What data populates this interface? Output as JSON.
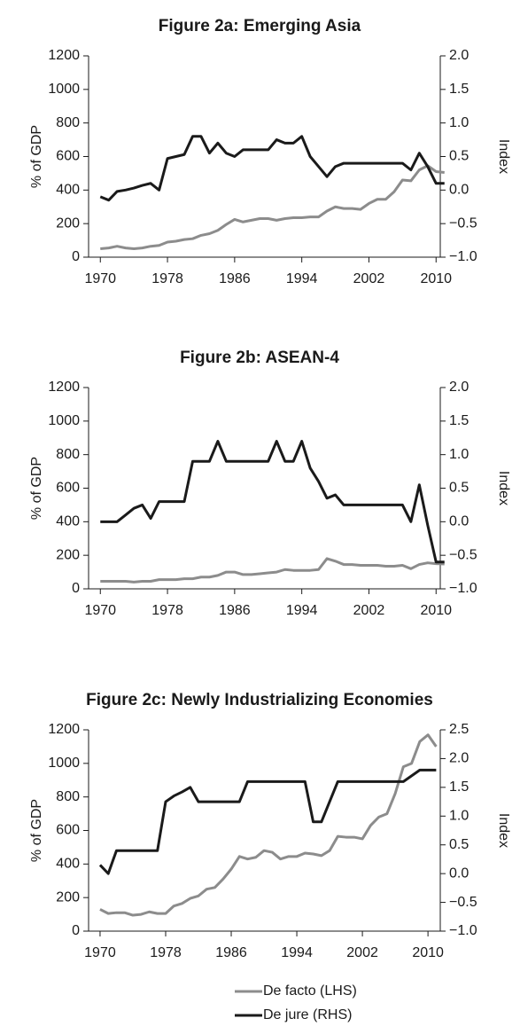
{
  "chart_data": [
    {
      "type": "line",
      "title": "Figure 2a: Emerging Asia",
      "ylabel": "% of GDP",
      "y2label": "Index",
      "x": [
        1970,
        1971,
        1972,
        1973,
        1974,
        1975,
        1976,
        1977,
        1978,
        1979,
        1980,
        1981,
        1982,
        1983,
        1984,
        1985,
        1986,
        1987,
        1988,
        1989,
        1990,
        1991,
        1992,
        1993,
        1994,
        1995,
        1996,
        1997,
        1998,
        1999,
        2000,
        2001,
        2002,
        2003,
        2004,
        2005,
        2006,
        2007,
        2008,
        2009,
        2010,
        2011
      ],
      "xlim": [
        1968.6,
        2010.5
      ],
      "xticks": [
        1970,
        1978,
        1986,
        1994,
        2002,
        2010
      ],
      "ylim": [
        0,
        1200
      ],
      "yticks": [
        0,
        200,
        400,
        600,
        800,
        1000,
        1200
      ],
      "y2lim": [
        -1.0,
        2.0
      ],
      "y2ticks": [
        {
          "value": -1.0,
          "label": "−1.0"
        },
        {
          "value": -0.5,
          "label": "−0.5"
        },
        {
          "value": 0,
          "label": "0.0"
        },
        0.5,
        {
          "value": 1,
          "label": "1.0"
        },
        1.5,
        {
          "value": 2,
          "label": "2.0"
        }
      ],
      "series": [
        {
          "color": "#8c8c8c",
          "values": [
            50,
            55,
            65,
            55,
            50,
            55,
            65,
            70,
            90,
            95,
            105,
            110,
            130,
            140,
            160,
            195,
            225,
            210,
            220,
            230,
            230,
            220,
            230,
            235,
            235,
            240,
            240,
            275,
            300,
            290,
            290,
            285,
            320,
            345,
            345,
            390,
            460,
            455,
            520,
            545,
            510,
            505
          ]
        },
        {
          "color": "#1a1a1a",
          "axis": "y2",
          "values": [
            -0.1,
            -0.15,
            -0.02,
            0.0,
            0.03,
            0.07,
            0.1,
            0.0,
            0.47,
            0.5,
            0.53,
            0.8,
            0.8,
            0.55,
            0.7,
            0.55,
            0.5,
            0.6,
            0.6,
            0.6,
            0.6,
            0.75,
            0.7,
            0.7,
            0.8,
            0.5,
            0.35,
            0.2,
            0.35,
            0.4,
            0.4,
            0.4,
            0.4,
            0.4,
            0.4,
            0.4,
            0.4,
            0.3,
            0.55,
            0.35,
            0.1,
            0.1
          ]
        }
      ]
    },
    {
      "type": "line",
      "title": "Figure 2b: ASEAN-4",
      "ylabel": "% of GDP",
      "y2label": "Index",
      "x": [
        1970,
        1971,
        1972,
        1973,
        1974,
        1975,
        1976,
        1977,
        1978,
        1979,
        1980,
        1981,
        1982,
        1983,
        1984,
        1985,
        1986,
        1987,
        1988,
        1989,
        1990,
        1991,
        1992,
        1993,
        1994,
        1995,
        1996,
        1997,
        1998,
        1999,
        2000,
        2001,
        2002,
        2003,
        2004,
        2005,
        2006,
        2007,
        2008,
        2009,
        2010,
        2011
      ],
      "xlim": [
        1968.6,
        2010.5
      ],
      "xticks": [
        1970,
        1978,
        1986,
        1994,
        2002,
        2010
      ],
      "ylim": [
        0,
        1200
      ],
      "yticks": [
        0,
        200,
        400,
        600,
        800,
        1000,
        1200
      ],
      "y2lim": [
        -1.0,
        2.0
      ],
      "y2ticks": [
        {
          "value": -1.0,
          "label": "−1.0"
        },
        {
          "value": -0.5,
          "label": "−0.5"
        },
        {
          "value": 0,
          "label": "0.0"
        },
        0.5,
        {
          "value": 1,
          "label": "1.0"
        },
        1.5,
        {
          "value": 2,
          "label": "2.0"
        }
      ],
      "series": [
        {
          "color": "#8c8c8c",
          "values": [
            45,
            45,
            45,
            45,
            40,
            45,
            45,
            55,
            55,
            55,
            60,
            60,
            70,
            70,
            80,
            100,
            100,
            85,
            85,
            90,
            95,
            100,
            115,
            110,
            110,
            110,
            115,
            180,
            165,
            145,
            145,
            140,
            140,
            140,
            135,
            135,
            140,
            120,
            145,
            155,
            150,
            148
          ]
        },
        {
          "color": "#1a1a1a",
          "axis": "y2",
          "values": [
            0.0,
            0.0,
            0.0,
            0.1,
            0.2,
            0.25,
            0.05,
            0.3,
            0.3,
            0.3,
            0.3,
            0.9,
            0.9,
            0.9,
            1.2,
            0.9,
            0.9,
            0.9,
            0.9,
            0.9,
            0.9,
            1.2,
            0.9,
            0.9,
            1.2,
            0.8,
            0.6,
            0.35,
            0.4,
            0.25,
            0.25,
            0.25,
            0.25,
            0.25,
            0.25,
            0.25,
            0.25,
            0.0,
            0.55,
            -0.05,
            -0.6,
            -0.6
          ]
        }
      ]
    },
    {
      "type": "line",
      "title": "Figure 2c: Newly Industrializing Economies",
      "ylabel": "% of GDP",
      "y2label": "Index",
      "x": [
        1970,
        1971,
        1972,
        1973,
        1974,
        1975,
        1976,
        1977,
        1978,
        1979,
        1980,
        1981,
        1982,
        1983,
        1984,
        1985,
        1986,
        1987,
        1988,
        1989,
        1990,
        1991,
        1992,
        1993,
        1994,
        1995,
        1996,
        1997,
        1998,
        1999,
        2000,
        2001,
        2002,
        2003,
        2004,
        2005,
        2006,
        2007,
        2008,
        2009,
        2010,
        2011
      ],
      "xlim": [
        1968.6,
        2011.5
      ],
      "xticks": [
        1970,
        1978,
        1986,
        1994,
        2002,
        2010
      ],
      "ylim": [
        0,
        1200
      ],
      "yticks": [
        0,
        200,
        400,
        600,
        800,
        1000,
        1200
      ],
      "y2lim": [
        -1.0,
        2.5
      ],
      "y2ticks": [
        {
          "value": -1.0,
          "label": "−1.0"
        },
        {
          "value": -0.5,
          "label": "−0.5"
        },
        {
          "value": 0,
          "label": "0.0"
        },
        0.5,
        {
          "value": 1,
          "label": "1.0"
        },
        1.5,
        {
          "value": 2,
          "label": "2.0"
        },
        2.5
      ],
      "series": [
        {
          "color": "#8c8c8c",
          "values": [
            130,
            105,
            110,
            110,
            95,
            100,
            115,
            105,
            105,
            150,
            165,
            195,
            210,
            250,
            260,
            310,
            370,
            445,
            430,
            440,
            480,
            470,
            430,
            445,
            445,
            465,
            460,
            450,
            480,
            565,
            560,
            560,
            550,
            630,
            680,
            700,
            820,
            980,
            1000,
            1130,
            1170,
            1100
          ]
        },
        {
          "color": "#1a1a1a",
          "axis": "y2",
          "values": [
            0.15,
            0.0,
            0.4,
            0.4,
            0.4,
            0.4,
            0.4,
            0.4,
            1.25,
            1.35,
            1.42,
            1.5,
            1.25,
            1.25,
            1.25,
            1.25,
            1.25,
            1.25,
            1.6,
            1.6,
            1.6,
            1.6,
            1.6,
            1.6,
            1.6,
            1.6,
            0.9,
            0.9,
            1.25,
            1.6,
            1.6,
            1.6,
            1.6,
            1.6,
            1.6,
            1.6,
            1.6,
            1.6,
            1.7,
            1.8,
            1.8,
            1.8
          ]
        }
      ]
    }
  ],
  "legend": [
    {
      "name": "De facto (LHS)",
      "color": "#8c8c8c"
    },
    {
      "name": "De jure (RHS)",
      "color": "#1a1a1a"
    }
  ]
}
